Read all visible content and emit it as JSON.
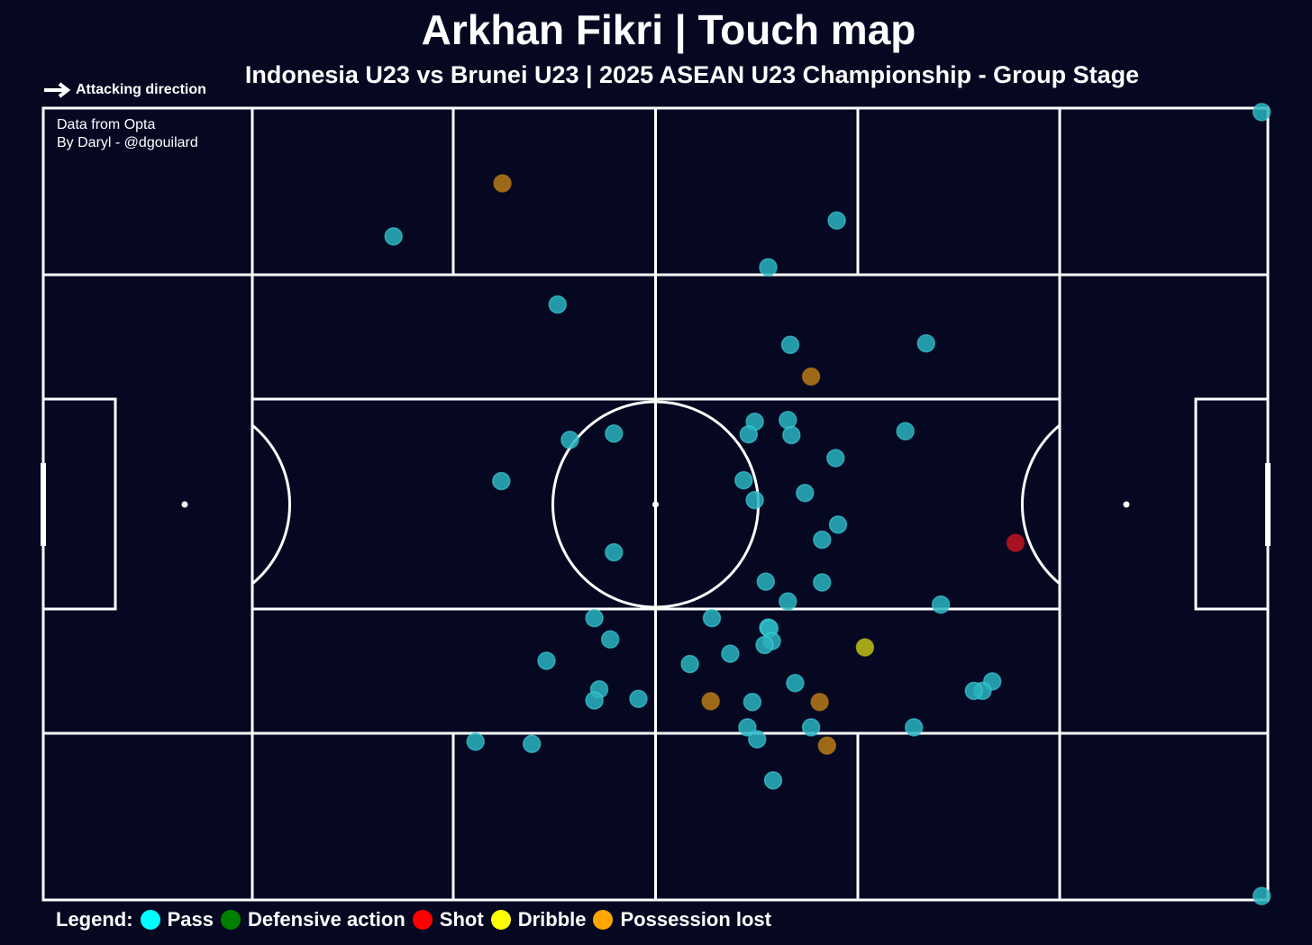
{
  "header": {
    "title": "Arkhan Fikri | Touch map",
    "subtitle": "Indonesia U23 vs Brunei U23 | 2025 ASEAN U23 Championship - Group Stage"
  },
  "attacking_direction": {
    "label": "Attacking direction",
    "icon": "arrow-right-icon"
  },
  "credits": {
    "line1": "Data from Opta",
    "line2": "By Daryl - @dgouilard"
  },
  "legend": {
    "label": "Legend:",
    "items": [
      {
        "label": "Pass",
        "color": "#00ffff"
      },
      {
        "label": "Defensive action",
        "color": "#008000"
      },
      {
        "label": "Shot",
        "color": "#ff0000"
      },
      {
        "label": "Dribble",
        "color": "#ffff00"
      },
      {
        "label": "Possession lost",
        "color": "#ffa500"
      }
    ]
  },
  "colors": {
    "background": "#060822",
    "lines": "#ffffff",
    "Pass": "#2ab3c0",
    "Shot": "#c21421",
    "Dribble": "#bfbf14",
    "Possession lost": "#b97a16",
    "Dribble (dim)": "#807814"
  },
  "chart_data": {
    "type": "scatter",
    "x_range": [
      0,
      100
    ],
    "y_range": [
      0,
      100
    ],
    "points": [
      {
        "x": 99.5,
        "y": 99.5,
        "type": "Pass"
      },
      {
        "x": 99.5,
        "y": 0.5,
        "type": "Pass"
      },
      {
        "x": 37.5,
        "y": 90.5,
        "type": "Possession lost"
      },
      {
        "x": 28.6,
        "y": 83.8,
        "type": "Pass"
      },
      {
        "x": 64.8,
        "y": 85.8,
        "type": "Pass"
      },
      {
        "x": 59.2,
        "y": 79.9,
        "type": "Pass"
      },
      {
        "x": 42.0,
        "y": 75.2,
        "type": "Pass"
      },
      {
        "x": 61.0,
        "y": 70.1,
        "type": "Pass"
      },
      {
        "x": 72.1,
        "y": 70.3,
        "type": "Pass"
      },
      {
        "x": 62.7,
        "y": 66.1,
        "type": "Possession lost"
      },
      {
        "x": 58.1,
        "y": 60.4,
        "type": "Pass"
      },
      {
        "x": 60.8,
        "y": 60.6,
        "type": "Pass"
      },
      {
        "x": 57.6,
        "y": 58.8,
        "type": "Pass"
      },
      {
        "x": 61.1,
        "y": 58.7,
        "type": "Pass"
      },
      {
        "x": 70.4,
        "y": 59.2,
        "type": "Pass"
      },
      {
        "x": 46.6,
        "y": 58.9,
        "type": "Pass"
      },
      {
        "x": 43.0,
        "y": 58.1,
        "type": "Pass"
      },
      {
        "x": 64.7,
        "y": 55.8,
        "type": "Pass"
      },
      {
        "x": 37.4,
        "y": 52.9,
        "type": "Pass"
      },
      {
        "x": 57.2,
        "y": 53.0,
        "type": "Pass"
      },
      {
        "x": 62.2,
        "y": 51.4,
        "type": "Pass"
      },
      {
        "x": 58.1,
        "y": 50.5,
        "type": "Pass"
      },
      {
        "x": 64.9,
        "y": 47.4,
        "type": "Pass"
      },
      {
        "x": 63.6,
        "y": 45.5,
        "type": "Pass"
      },
      {
        "x": 79.4,
        "y": 45.1,
        "type": "Shot"
      },
      {
        "x": 46.6,
        "y": 43.9,
        "type": "Pass"
      },
      {
        "x": 59.0,
        "y": 40.2,
        "type": "Pass"
      },
      {
        "x": 63.6,
        "y": 40.1,
        "type": "Pass"
      },
      {
        "x": 60.8,
        "y": 37.7,
        "type": "Pass"
      },
      {
        "x": 73.3,
        "y": 37.3,
        "type": "Pass"
      },
      {
        "x": 45.0,
        "y": 35.6,
        "type": "Pass"
      },
      {
        "x": 54.6,
        "y": 35.6,
        "type": "Pass"
      },
      {
        "x": 59.2,
        "y": 34.4,
        "type": "Pass"
      },
      {
        "x": 59.3,
        "y": 34.3,
        "type": "Pass"
      },
      {
        "x": 46.3,
        "y": 32.9,
        "type": "Pass"
      },
      {
        "x": 59.5,
        "y": 32.7,
        "type": "Pass"
      },
      {
        "x": 58.9,
        "y": 32.2,
        "type": "Pass"
      },
      {
        "x": 67.1,
        "y": 31.9,
        "type": "Dribble"
      },
      {
        "x": 56.1,
        "y": 31.1,
        "type": "Pass"
      },
      {
        "x": 41.1,
        "y": 30.2,
        "type": "Pass"
      },
      {
        "x": 52.8,
        "y": 29.8,
        "type": "Pass"
      },
      {
        "x": 61.4,
        "y": 27.4,
        "type": "Pass"
      },
      {
        "x": 45.4,
        "y": 26.6,
        "type": "Pass"
      },
      {
        "x": 77.5,
        "y": 27.6,
        "type": "Pass"
      },
      {
        "x": 76.7,
        "y": 26.4,
        "type": "Pass"
      },
      {
        "x": 76.0,
        "y": 26.4,
        "type": "Pass"
      },
      {
        "x": 45.0,
        "y": 25.2,
        "type": "Pass"
      },
      {
        "x": 48.6,
        "y": 25.4,
        "type": "Pass"
      },
      {
        "x": 54.5,
        "y": 25.1,
        "type": "Possession lost"
      },
      {
        "x": 57.9,
        "y": 25.0,
        "type": "Pass"
      },
      {
        "x": 63.4,
        "y": 25.0,
        "type": "Possession lost"
      },
      {
        "x": 57.5,
        "y": 21.8,
        "type": "Pass"
      },
      {
        "x": 62.7,
        "y": 21.8,
        "type": "Pass"
      },
      {
        "x": 71.1,
        "y": 21.8,
        "type": "Pass"
      },
      {
        "x": 58.3,
        "y": 20.3,
        "type": "Pass"
      },
      {
        "x": 35.3,
        "y": 20.0,
        "type": "Pass"
      },
      {
        "x": 39.9,
        "y": 19.7,
        "type": "Pass"
      },
      {
        "x": 64.0,
        "y": 19.5,
        "type": "Possession lost"
      },
      {
        "x": 59.6,
        "y": 15.1,
        "type": "Pass"
      }
    ]
  }
}
